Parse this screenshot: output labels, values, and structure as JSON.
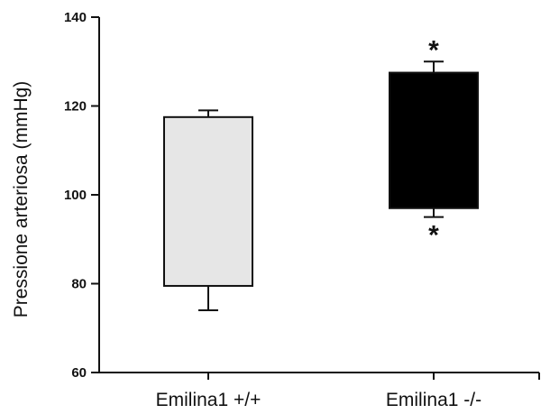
{
  "chart_data": {
    "type": "box",
    "ylabel": "Pressione arteriosa (mmHg)",
    "xlabel": "",
    "ylim": [
      60,
      140
    ],
    "yticks": [
      60,
      80,
      100,
      120,
      140
    ],
    "categories": [
      "Emilina1 +/+",
      "Emilina1 -/-"
    ],
    "boxes": [
      {
        "category": "Emilina1 +/+",
        "whisker_low": 74,
        "box_low": 79.5,
        "box_high": 117.5,
        "whisker_high": 119,
        "color": "#e6e6e6",
        "annotations": []
      },
      {
        "category": "Emilina1 -/-",
        "whisker_low": 95,
        "box_low": 97,
        "box_high": 127.5,
        "whisker_high": 130,
        "color": "#000000",
        "annotations": [
          "*",
          "*"
        ]
      }
    ],
    "grid": false,
    "legend": "none"
  }
}
